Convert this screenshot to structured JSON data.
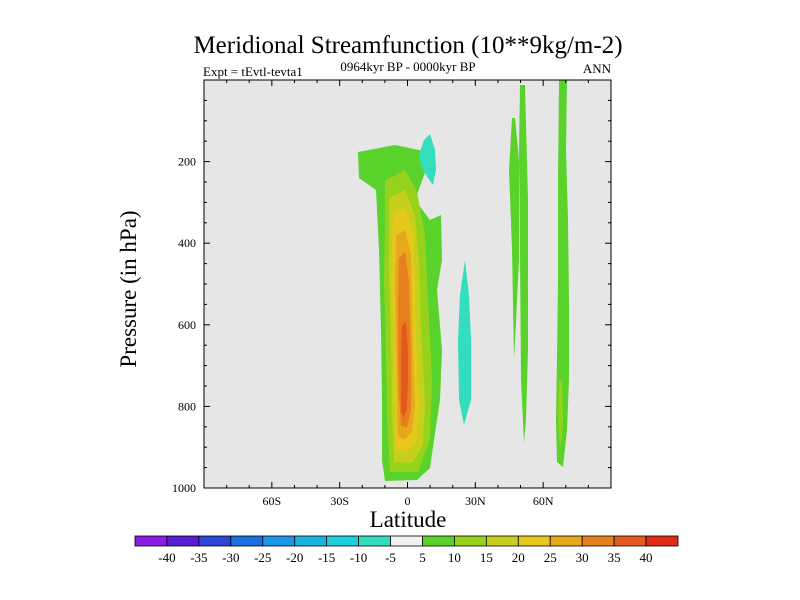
{
  "chart_data": {
    "type": "contour",
    "title": "Meridional Streamfunction (10**9kg/m-2)",
    "subtitle": "0964kyr BP - 0000kyr BP",
    "left_label": "Expt = tEvtl-tevta1",
    "right_label": "ANN",
    "xlabel": "Latitude",
    "ylabel": "Pressure (in hPa)",
    "xlim": [
      -90,
      90
    ],
    "ylim": [
      0,
      1000
    ],
    "y_inverted": true,
    "x_ticks": [
      {
        "value": -60,
        "label": "60S"
      },
      {
        "value": -30,
        "label": "30S"
      },
      {
        "value": 0,
        "label": "0"
      },
      {
        "value": 30,
        "label": "30N"
      },
      {
        "value": 60,
        "label": "60N"
      }
    ],
    "y_ticks": [
      {
        "value": 200,
        "label": "200"
      },
      {
        "value": 400,
        "label": "400"
      },
      {
        "value": 600,
        "label": "600"
      },
      {
        "value": 800,
        "label": "800"
      },
      {
        "value": 1000,
        "label": "1000"
      }
    ],
    "background_color": "#e6e6e6",
    "colorbar": {
      "labels": [
        "-40",
        "-35",
        "-30",
        "-25",
        "-20",
        "-15",
        "-10",
        "-5",
        "5",
        "10",
        "15",
        "20",
        "25",
        "30",
        "35",
        "40"
      ],
      "colors": [
        "#8a1ce6",
        "#5a1ed2",
        "#2d46d8",
        "#1b6ee0",
        "#1a96e6",
        "#18b4e2",
        "#1ecfdc",
        "#34ddbe",
        "#f0f0f0",
        "#5ad22c",
        "#96d21c",
        "#c6d01c",
        "#e6c81c",
        "#e8a81c",
        "#e6801e",
        "#e45a1e",
        "#e02c14"
      ]
    },
    "features": [
      {
        "name": "tropical-cell",
        "levels": [
          5,
          10,
          15,
          20,
          25,
          30,
          35
        ],
        "center_lat": 0,
        "center_pressure": 700,
        "peak": 35
      },
      {
        "name": "cyan-upper-patch",
        "level": -5,
        "lat_range": [
          5,
          12
        ],
        "pressure_range": [
          130,
          300
        ]
      },
      {
        "name": "cyan-lower-patch",
        "level": -5,
        "lat_range": [
          22,
          28
        ],
        "pressure_range": [
          420,
          840
        ]
      },
      {
        "name": "green-strip-45N",
        "level": 5,
        "lat_range": [
          45,
          50
        ],
        "pressure_range": [
          90,
          800
        ]
      },
      {
        "name": "green-strip-52N",
        "level": 5,
        "lat_range": [
          51,
          54
        ],
        "pressure_range": [
          0,
          880
        ]
      },
      {
        "name": "green-strip-68N",
        "level": 5,
        "lat_range": [
          65,
          70
        ],
        "pressure_range": [
          0,
          950
        ]
      }
    ]
  }
}
